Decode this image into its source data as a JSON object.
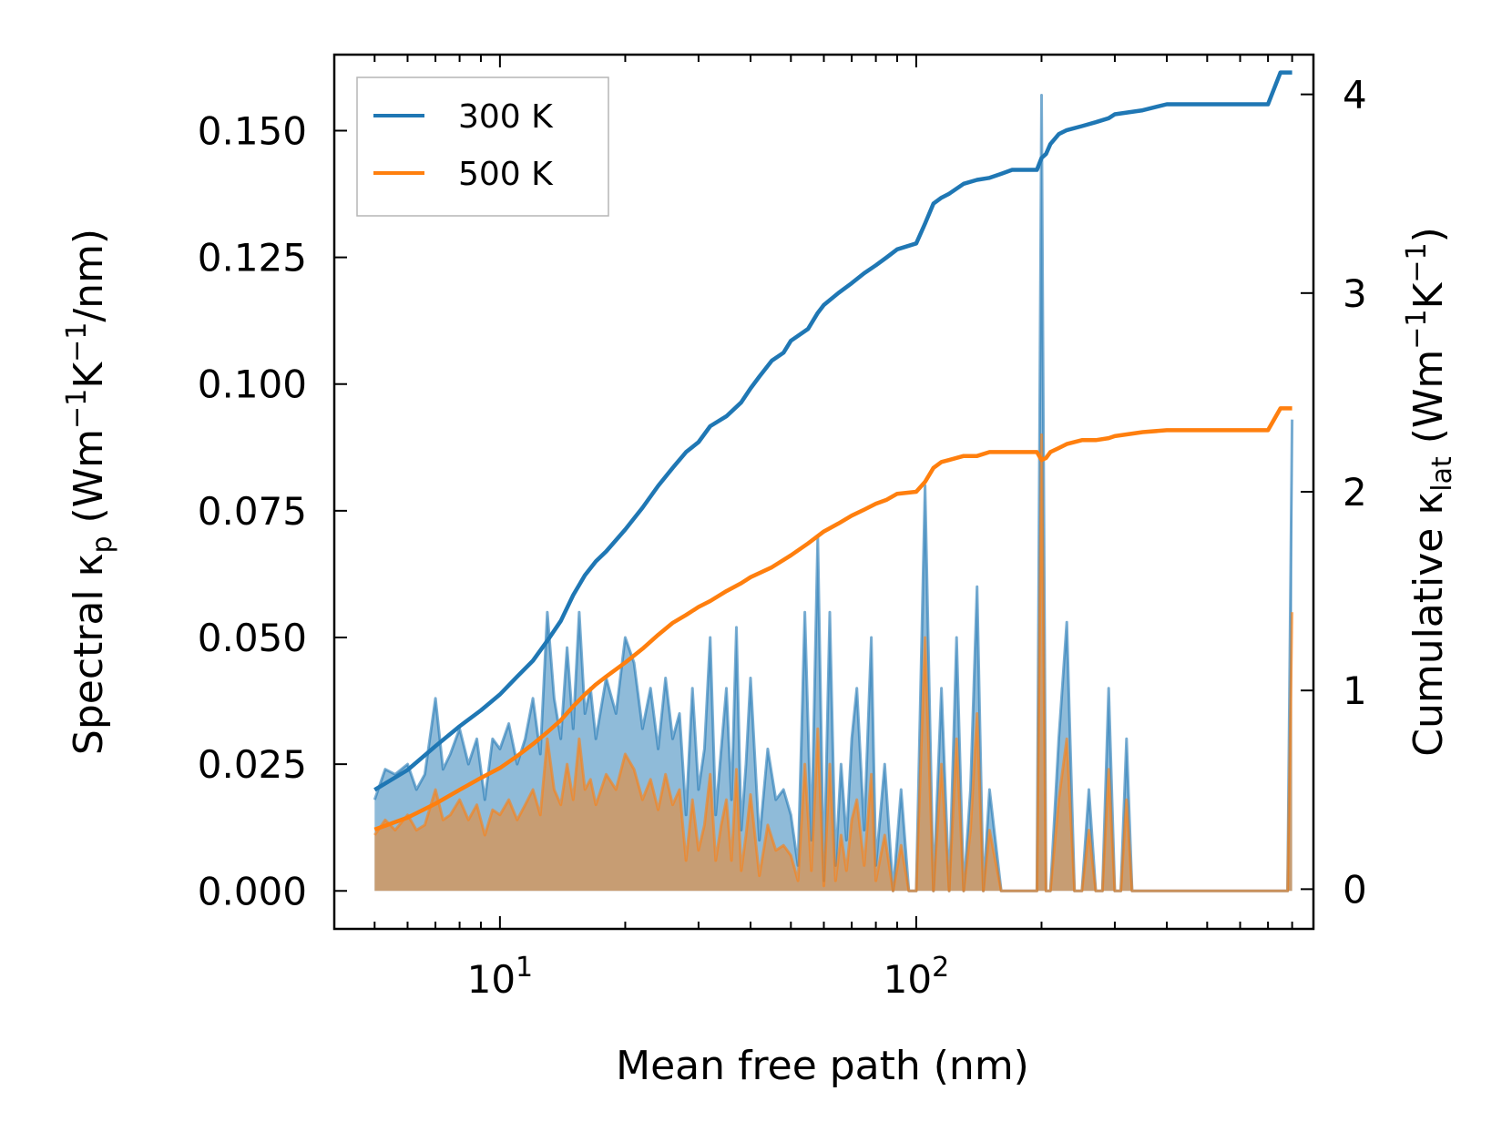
{
  "chart_data": {
    "type": "area",
    "xlabel": "Mean free path (nm)",
    "ylabel_left": {
      "base": "Spectral ",
      "kappa": "κ",
      "kappa_sub": "p",
      "unit_open": " (Wm",
      "exp1": "−1",
      "unit_mid": "K",
      "exp2": "−1",
      "unit_close": "/nm)"
    },
    "ylabel_right": {
      "base": "Cumulative ",
      "kappa": "κ",
      "kappa_sub": "lat",
      "unit_open": " (Wm",
      "exp1": "−1",
      "unit_mid": "K",
      "exp2": "−1",
      "unit_close": ")"
    },
    "x_scale": "log",
    "xlim": [
      4.0,
      900
    ],
    "ylim_left": [
      -0.0075,
      0.165
    ],
    "ylim_right": [
      -0.2,
      4.2
    ],
    "x_ticks": [
      {
        "base": "10",
        "exp": "1",
        "value": 10
      },
      {
        "base": "10",
        "exp": "2",
        "value": 100
      }
    ],
    "y_ticks_left": [
      "0.000",
      "0.025",
      "0.050",
      "0.075",
      "0.100",
      "0.125",
      "0.150"
    ],
    "y_ticks_right": [
      "0",
      "1",
      "2",
      "3",
      "4"
    ],
    "legend": {
      "position": "upper left",
      "entries": [
        "300 K",
        "500 K"
      ]
    },
    "colors": {
      "300 K": "#1f77b4",
      "500 K": "#ff7f0e"
    },
    "series": [
      {
        "name": "300 K",
        "spectral": {
          "x": [
            5,
            5.3,
            5.6,
            6,
            6.3,
            6.6,
            7,
            7.3,
            7.6,
            8,
            8.4,
            8.8,
            9.2,
            9.6,
            10,
            10.5,
            11,
            11.5,
            12,
            12.5,
            13,
            13.5,
            14,
            14.5,
            15,
            15.5,
            16,
            16.5,
            17,
            18,
            19,
            20,
            21,
            22,
            23,
            24,
            25,
            26,
            27,
            28,
            29,
            30,
            31,
            32,
            33,
            34,
            35,
            36,
            37,
            38,
            39,
            40,
            42,
            44,
            46,
            48,
            50,
            52,
            54,
            56,
            58,
            60,
            62,
            64,
            66,
            68,
            70,
            72,
            75,
            78,
            80,
            84,
            88,
            92,
            96,
            100,
            105,
            110,
            115,
            120,
            125,
            130,
            135,
            140,
            145,
            150,
            160,
            170,
            180,
            190,
            195,
            200,
            205,
            210,
            220,
            230,
            240,
            250,
            260,
            270,
            280,
            290,
            300,
            310,
            320,
            330,
            340,
            350,
            360,
            380,
            400,
            420,
            440,
            460,
            480,
            500,
            550,
            600,
            650,
            700,
            720,
            740,
            760,
            780,
            800
          ],
          "y": [
            0.018,
            0.024,
            0.023,
            0.025,
            0.02,
            0.023,
            0.038,
            0.024,
            0.027,
            0.032,
            0.025,
            0.03,
            0.018,
            0.03,
            0.028,
            0.033,
            0.025,
            0.03,
            0.038,
            0.027,
            0.055,
            0.038,
            0.03,
            0.048,
            0.032,
            0.055,
            0.035,
            0.04,
            0.03,
            0.042,
            0.035,
            0.05,
            0.045,
            0.032,
            0.04,
            0.028,
            0.042,
            0.03,
            0.035,
            0.015,
            0.04,
            0.02,
            0.028,
            0.05,
            0.015,
            0.028,
            0.04,
            0.018,
            0.052,
            0.012,
            0.025,
            0.042,
            0.01,
            0.028,
            0.018,
            0.02,
            0.015,
            0.005,
            0.055,
            0.01,
            0.07,
            0.002,
            0.055,
            0.005,
            0.025,
            0.01,
            0.03,
            0.04,
            0.012,
            0.05,
            0.005,
            0.025,
            0.0,
            0.02,
            0.0,
            0.0,
            0.08,
            0.0,
            0.04,
            0.0,
            0.05,
            0.0,
            0.02,
            0.06,
            0.0,
            0.02,
            0.0,
            0.0,
            0.0,
            0.0,
            0.0,
            0.157,
            0.0,
            0.0,
            0.03,
            0.053,
            0.0,
            0.0,
            0.02,
            0.0,
            0.0,
            0.04,
            0.0,
            0.0,
            0.03,
            0.0,
            0.0,
            0.0,
            0.0,
            0.0,
            0.0,
            0.0,
            0.0,
            0.0,
            0.0,
            0.0,
            0.0,
            0.0,
            0.0,
            0.0,
            0.0,
            0.0,
            0.0,
            0.0,
            0.093
          ]
        },
        "cumulative": {
          "x": [
            5,
            6,
            7,
            8,
            9,
            10,
            11,
            12,
            13,
            14,
            15,
            16,
            17,
            18,
            20,
            22,
            24,
            26,
            28,
            30,
            32,
            35,
            38,
            40,
            42,
            45,
            48,
            50,
            55,
            58,
            60,
            65,
            70,
            75,
            80,
            85,
            90,
            100,
            105,
            110,
            115,
            120,
            130,
            140,
            150,
            160,
            170,
            180,
            190,
            195,
            200,
            205,
            210,
            220,
            230,
            250,
            270,
            290,
            300,
            350,
            400,
            450,
            500,
            600,
            700,
            750,
            800
          ],
          "y": [
            0.5,
            0.6,
            0.72,
            0.82,
            0.9,
            0.98,
            1.07,
            1.15,
            1.25,
            1.35,
            1.48,
            1.58,
            1.65,
            1.7,
            1.81,
            1.92,
            2.03,
            2.12,
            2.2,
            2.25,
            2.33,
            2.38,
            2.45,
            2.52,
            2.58,
            2.66,
            2.7,
            2.76,
            2.82,
            2.9,
            2.94,
            3.0,
            3.05,
            3.1,
            3.14,
            3.18,
            3.22,
            3.25,
            3.35,
            3.45,
            3.48,
            3.5,
            3.55,
            3.57,
            3.58,
            3.6,
            3.62,
            3.62,
            3.62,
            3.62,
            3.68,
            3.7,
            3.75,
            3.8,
            3.82,
            3.84,
            3.86,
            3.88,
            3.9,
            3.92,
            3.95,
            3.95,
            3.95,
            3.95,
            3.95,
            4.11,
            4.11
          ]
        }
      },
      {
        "name": "500 K",
        "spectral": {
          "x": [
            5,
            5.3,
            5.6,
            6,
            6.3,
            6.6,
            7,
            7.3,
            7.6,
            8,
            8.4,
            8.8,
            9.2,
            9.6,
            10,
            10.5,
            11,
            11.5,
            12,
            12.5,
            13,
            13.5,
            14,
            14.5,
            15,
            15.5,
            16,
            16.5,
            17,
            18,
            19,
            20,
            21,
            22,
            23,
            24,
            25,
            26,
            27,
            28,
            29,
            30,
            31,
            32,
            33,
            34,
            35,
            36,
            37,
            38,
            39,
            40,
            42,
            44,
            46,
            48,
            50,
            52,
            54,
            56,
            58,
            60,
            62,
            64,
            66,
            68,
            70,
            72,
            75,
            78,
            80,
            84,
            88,
            92,
            96,
            100,
            105,
            110,
            115,
            120,
            125,
            130,
            135,
            140,
            145,
            150,
            160,
            170,
            180,
            190,
            195,
            200,
            205,
            210,
            220,
            230,
            240,
            250,
            260,
            270,
            280,
            290,
            300,
            310,
            320,
            330,
            340,
            350,
            360,
            380,
            400,
            420,
            440,
            460,
            480,
            500,
            550,
            600,
            650,
            700,
            720,
            740,
            760,
            780,
            800
          ],
          "y": [
            0.011,
            0.014,
            0.012,
            0.015,
            0.012,
            0.013,
            0.02,
            0.014,
            0.015,
            0.018,
            0.014,
            0.017,
            0.011,
            0.016,
            0.015,
            0.018,
            0.014,
            0.017,
            0.02,
            0.015,
            0.03,
            0.02,
            0.017,
            0.025,
            0.018,
            0.03,
            0.02,
            0.022,
            0.017,
            0.023,
            0.02,
            0.027,
            0.024,
            0.018,
            0.022,
            0.016,
            0.023,
            0.017,
            0.02,
            0.006,
            0.018,
            0.008,
            0.013,
            0.023,
            0.006,
            0.013,
            0.018,
            0.006,
            0.024,
            0.004,
            0.011,
            0.019,
            0.003,
            0.013,
            0.008,
            0.009,
            0.007,
            0.002,
            0.025,
            0.004,
            0.032,
            0.001,
            0.025,
            0.002,
            0.011,
            0.004,
            0.014,
            0.018,
            0.005,
            0.023,
            0.002,
            0.011,
            0.0,
            0.009,
            0.0,
            0.0,
            0.05,
            0.0,
            0.025,
            0.0,
            0.03,
            0.0,
            0.012,
            0.035,
            0.0,
            0.012,
            0.0,
            0.0,
            0.0,
            0.0,
            0.0,
            0.09,
            0.0,
            0.0,
            0.018,
            0.03,
            0.0,
            0.0,
            0.012,
            0.0,
            0.0,
            0.024,
            0.0,
            0.0,
            0.018,
            0.0,
            0.0,
            0.0,
            0.0,
            0.0,
            0.0,
            0.0,
            0.0,
            0.0,
            0.0,
            0.0,
            0.0,
            0.0,
            0.0,
            0.0,
            0.0,
            0.0,
            0.0,
            0.0,
            0.055
          ]
        },
        "cumulative": {
          "x": [
            5,
            6,
            7,
            8,
            9,
            10,
            11,
            12,
            13,
            14,
            15,
            16,
            17,
            18,
            20,
            22,
            24,
            26,
            28,
            30,
            32,
            35,
            38,
            40,
            45,
            50,
            55,
            60,
            65,
            70,
            75,
            80,
            85,
            90,
            100,
            105,
            110,
            115,
            120,
            130,
            140,
            150,
            160,
            170,
            180,
            190,
            195,
            200,
            205,
            210,
            220,
            230,
            250,
            270,
            290,
            300,
            350,
            400,
            450,
            500,
            600,
            700,
            750,
            800
          ],
          "y": [
            0.3,
            0.36,
            0.43,
            0.5,
            0.56,
            0.61,
            0.67,
            0.73,
            0.79,
            0.85,
            0.92,
            0.98,
            1.03,
            1.07,
            1.14,
            1.21,
            1.28,
            1.34,
            1.38,
            1.42,
            1.45,
            1.5,
            1.54,
            1.57,
            1.62,
            1.68,
            1.74,
            1.8,
            1.84,
            1.88,
            1.91,
            1.94,
            1.96,
            1.99,
            2.0,
            2.05,
            2.12,
            2.15,
            2.16,
            2.18,
            2.18,
            2.2,
            2.2,
            2.2,
            2.2,
            2.2,
            2.2,
            2.16,
            2.17,
            2.2,
            2.22,
            2.24,
            2.26,
            2.26,
            2.27,
            2.28,
            2.3,
            2.31,
            2.31,
            2.31,
            2.31,
            2.31,
            2.42,
            2.42
          ]
        }
      }
    ]
  }
}
